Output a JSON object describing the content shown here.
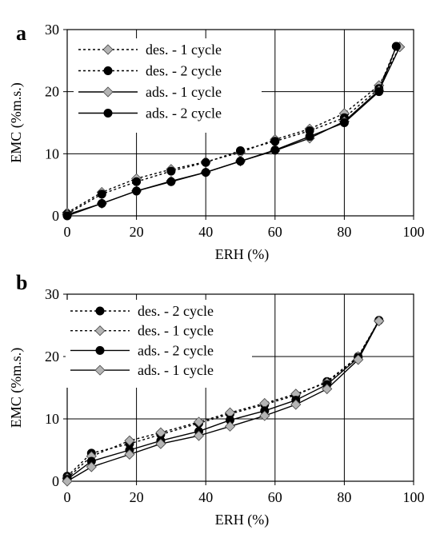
{
  "chart_data": [
    {
      "panel_label": "a",
      "type": "line",
      "xlabel": "ERH (%)",
      "ylabel": "EMC (%m.s.)",
      "xlim": [
        0,
        100
      ],
      "ylim": [
        0,
        30
      ],
      "xticks": [
        0,
        20,
        40,
        60,
        80,
        100
      ],
      "yticks": [
        0,
        10,
        20,
        30
      ],
      "grid": true,
      "legend_position": "top-left",
      "series": [
        {
          "name": "des. - 1 cycle",
          "line": "dotted",
          "marker": "diamond",
          "marker_color": "#b4b4b4",
          "x": [
            0,
            10,
            20,
            30,
            40,
            50,
            60,
            70,
            80,
            90,
            96
          ],
          "y": [
            0.5,
            3.8,
            6.0,
            7.5,
            8.7,
            10.2,
            12.3,
            14.0,
            16.5,
            21.0,
            27.2
          ]
        },
        {
          "name": "des. - 2 cycle",
          "line": "dotted",
          "marker": "circle",
          "marker_color": "#000000",
          "x": [
            0,
            10,
            20,
            30,
            40,
            50,
            60,
            70,
            80,
            90,
            95
          ],
          "y": [
            0.3,
            3.5,
            5.5,
            7.2,
            8.6,
            10.5,
            12.0,
            13.7,
            15.8,
            20.5,
            27.3
          ]
        },
        {
          "name": "ads. - 1 cycle",
          "line": "solid",
          "marker": "diamond",
          "marker_color": "#b4b4b4",
          "x": [
            0,
            10,
            20,
            30,
            40,
            50,
            60,
            70,
            80,
            90,
            96
          ],
          "y": [
            0.2,
            2.0,
            4.0,
            5.6,
            7.0,
            8.8,
            10.5,
            12.5,
            15.2,
            20.2,
            27.2
          ]
        },
        {
          "name": "ads. - 2 cycle",
          "line": "solid",
          "marker": "circle",
          "marker_color": "#000000",
          "x": [
            0,
            10,
            20,
            30,
            40,
            50,
            60,
            70,
            80,
            90,
            95
          ],
          "y": [
            0.0,
            2.0,
            4.0,
            5.5,
            7.0,
            8.8,
            10.6,
            12.8,
            15.0,
            20.0,
            27.3
          ]
        }
      ]
    },
    {
      "panel_label": "b",
      "type": "line",
      "xlabel": "ERH (%)",
      "ylabel": "EMC (%m.s.)",
      "xlim": [
        0,
        100
      ],
      "ylim": [
        0,
        30
      ],
      "xticks": [
        0,
        20,
        40,
        60,
        80,
        100
      ],
      "yticks": [
        0,
        10,
        20,
        30
      ],
      "grid": true,
      "legend_position": "top-left",
      "series": [
        {
          "name": "des. - 2 cycle",
          "line": "dotted",
          "marker": "circle",
          "marker_color": "#000000",
          "x": [
            0,
            7,
            18,
            27,
            38,
            47,
            57,
            66,
            75,
            84,
            90
          ],
          "y": [
            0.8,
            4.5,
            6.0,
            7.5,
            9.3,
            10.8,
            12.3,
            13.8,
            16.0,
            20.0,
            25.8
          ]
        },
        {
          "name": "des. - 1 cycle",
          "line": "dotted",
          "marker": "diamond",
          "marker_color": "#b4b4b4",
          "x": [
            0,
            7,
            18,
            27,
            38,
            47,
            57,
            66,
            75,
            84,
            90
          ],
          "y": [
            0.5,
            4.0,
            6.5,
            7.8,
            9.5,
            11.0,
            12.5,
            14.0,
            15.8,
            20.0,
            25.7
          ]
        },
        {
          "name": "ads. - 2 cycle",
          "line": "solid",
          "marker": "circle",
          "marker_color": "#000000",
          "x": [
            0,
            7,
            18,
            27,
            38,
            47,
            57,
            66,
            75,
            84,
            90
          ],
          "y": [
            0.3,
            3.2,
            5.0,
            6.5,
            8.0,
            9.8,
            11.3,
            13.0,
            15.5,
            19.8,
            25.8
          ]
        },
        {
          "name": "ads. - 1 cycle",
          "line": "solid",
          "marker": "diamond",
          "marker_color": "#b4b4b4",
          "x": [
            0,
            7,
            18,
            27,
            38,
            47,
            57,
            66,
            75,
            84,
            90
          ],
          "y": [
            0.0,
            2.3,
            4.3,
            6.0,
            7.3,
            8.8,
            10.5,
            12.3,
            14.8,
            19.5,
            25.7
          ]
        }
      ]
    }
  ]
}
